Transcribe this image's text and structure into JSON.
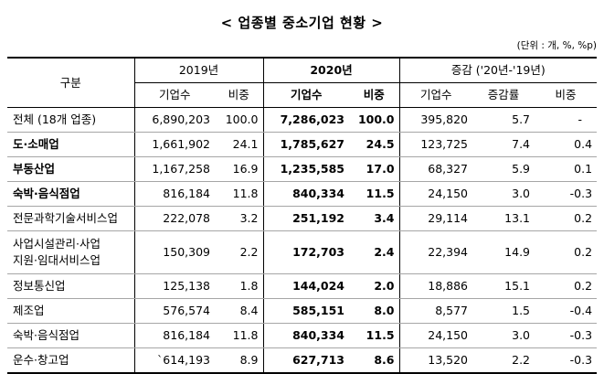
{
  "title": "< 업종별 중소기업 현황 >",
  "unit": "(단위 : 개, %, %p)",
  "header": {
    "category": "구분",
    "groups": [
      "2019년",
      "2020년",
      "증감 ('20년-'19년)"
    ],
    "sub": [
      "기업수",
      "비중",
      "기업수",
      "비중",
      "기업수",
      "증감률",
      "비중"
    ]
  },
  "rows": [
    {
      "label": "전체 (18개 업종)",
      "bold": false,
      "cells": [
        "6,890,203",
        "100.0",
        "7,286,023",
        "100.0",
        "395,820",
        "5.7",
        "-"
      ]
    },
    {
      "label": "도·소매업",
      "bold": true,
      "cells": [
        "1,661,902",
        "24.1",
        "1,785,627",
        "24.5",
        "123,725",
        "7.4",
        "0.4"
      ]
    },
    {
      "label": "부동산업",
      "bold": true,
      "cells": [
        "1,167,258",
        "16.9",
        "1,235,585",
        "17.0",
        "68,327",
        "5.9",
        "0.1"
      ]
    },
    {
      "label": "숙박·음식점업",
      "bold": true,
      "cells": [
        "816,184",
        "11.8",
        "840,334",
        "11.5",
        "24,150",
        "3.0",
        "-0.3"
      ]
    },
    {
      "label": "전문과학기술서비스업",
      "bold": false,
      "cells": [
        "222,078",
        "3.2",
        "251,192",
        "3.4",
        "29,114",
        "13.1",
        "0.2"
      ]
    },
    {
      "label": "사업시설관리·사업\n지원·임대서비스업",
      "bold": false,
      "tall": true,
      "cells": [
        "150,309",
        "2.2",
        "172,703",
        "2.4",
        "22,394",
        "14.9",
        "0.2"
      ]
    },
    {
      "label": "정보통신업",
      "bold": false,
      "cells": [
        "125,138",
        "1.8",
        "144,024",
        "2.0",
        "18,886",
        "15.1",
        "0.2"
      ]
    },
    {
      "label": "제조업",
      "bold": false,
      "cells": [
        "576,574",
        "8.4",
        "585,151",
        "8.0",
        "8,577",
        "1.5",
        "-0.4"
      ]
    },
    {
      "label": "숙박·음식점업",
      "bold": false,
      "cells": [
        "816,184",
        "11.8",
        "840,334",
        "11.5",
        "24,150",
        "3.0",
        "-0.3"
      ]
    },
    {
      "label": "운수·창고업",
      "bold": false,
      "cells": [
        "`614,193",
        "8.9",
        "627,713",
        "8.6",
        "13,520",
        "2.2",
        "-0.3"
      ]
    }
  ]
}
